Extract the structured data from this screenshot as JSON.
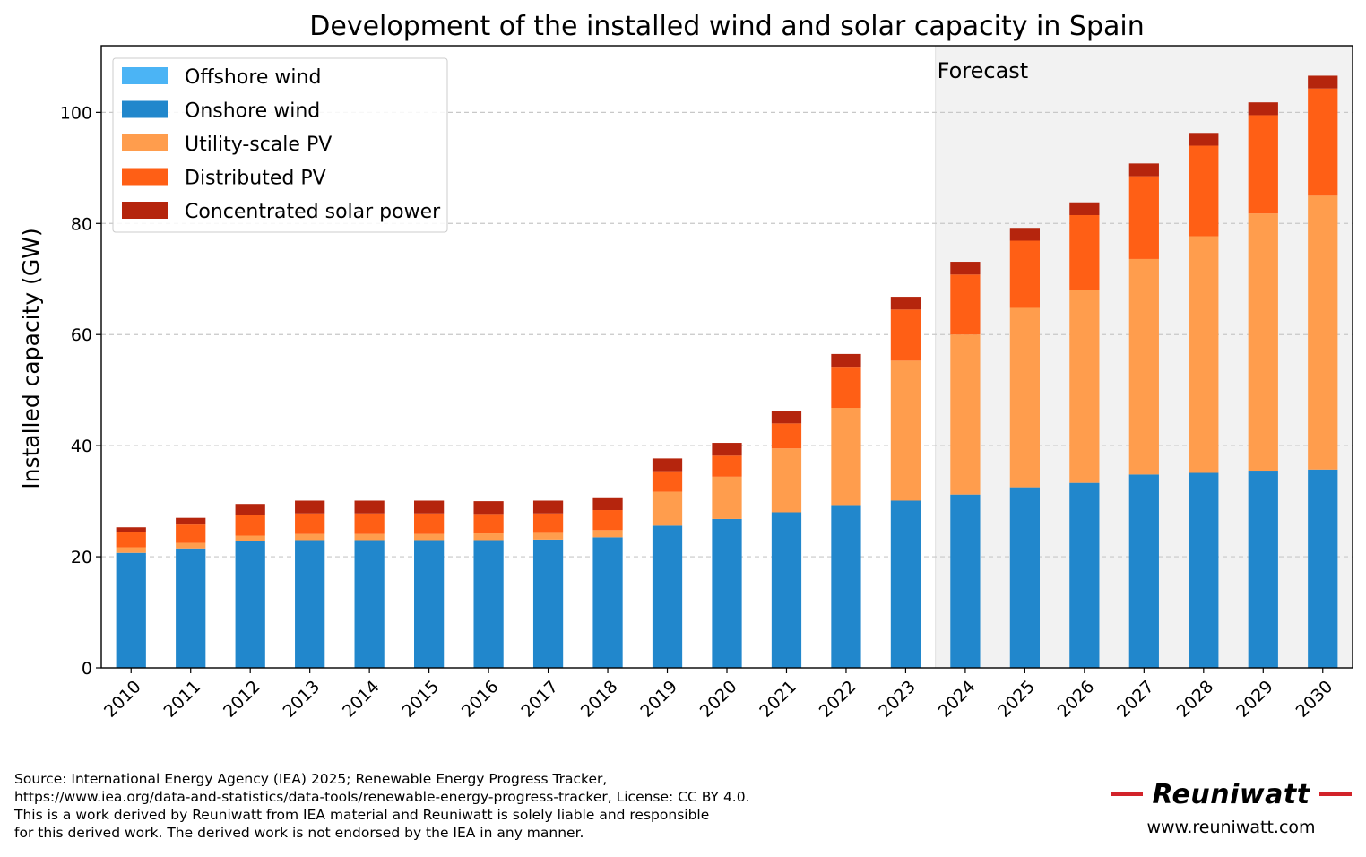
{
  "chart_data": {
    "type": "bar",
    "stacked": true,
    "title": "Development of the installed wind and solar capacity in Spain",
    "xlabel": "",
    "ylabel": "Installed capacity (GW)",
    "ylim": [
      0,
      112
    ],
    "yticks": [
      0,
      20,
      40,
      60,
      80,
      100
    ],
    "grid": "y dashed",
    "legend_position": "top-left",
    "categories": [
      "2010",
      "2011",
      "2012",
      "2013",
      "2014",
      "2015",
      "2016",
      "2017",
      "2018",
      "2019",
      "2020",
      "2021",
      "2022",
      "2023",
      "2024",
      "2025",
      "2026",
      "2027",
      "2028",
      "2029",
      "2030"
    ],
    "forecast_label": "Forecast",
    "forecast_start": "2024",
    "series": [
      {
        "name": "Offshore wind",
        "color": "#4bb4f5",
        "values": [
          0,
          0,
          0,
          0,
          0,
          0,
          0,
          0,
          0,
          0,
          0,
          0,
          0,
          0,
          0,
          0,
          0,
          0,
          0,
          0,
          0
        ]
      },
      {
        "name": "Onshore wind",
        "color": "#2187cc",
        "values": [
          20.7,
          21.5,
          22.8,
          23.0,
          23.0,
          23.0,
          23.0,
          23.1,
          23.5,
          25.6,
          26.8,
          28.0,
          29.3,
          30.1,
          31.2,
          32.5,
          33.3,
          34.8,
          35.1,
          35.5,
          35.7
        ]
      },
      {
        "name": "Utility-scale PV",
        "color": "#ff9d4d",
        "values": [
          1.0,
          1.0,
          1.0,
          1.1,
          1.1,
          1.1,
          1.2,
          1.2,
          1.3,
          6.1,
          7.6,
          11.5,
          17.5,
          25.2,
          28.8,
          32.3,
          34.7,
          38.8,
          42.6,
          46.3,
          49.3
        ]
      },
      {
        "name": "Distributed PV",
        "color": "#ff5f15",
        "values": [
          2.8,
          3.3,
          3.7,
          3.7,
          3.7,
          3.7,
          3.5,
          3.5,
          3.6,
          3.7,
          3.8,
          4.5,
          7.4,
          9.2,
          10.8,
          12.1,
          13.5,
          14.9,
          16.3,
          17.7,
          19.3
        ]
      },
      {
        "name": "Concentrated solar power",
        "color": "#b5250d",
        "values": [
          0.8,
          1.2,
          2.0,
          2.3,
          2.3,
          2.3,
          2.3,
          2.3,
          2.3,
          2.3,
          2.3,
          2.3,
          2.3,
          2.3,
          2.3,
          2.3,
          2.3,
          2.3,
          2.3,
          2.3,
          2.3
        ]
      }
    ]
  },
  "footer": {
    "source_lines": [
      "Source: International Energy Agency (IEA) 2025; Renewable Energy Progress Tracker,",
      "https://www.iea.org/data-and-statistics/data-tools/renewable-energy-progress-tracker, License: CC BY 4.0.",
      "This is a work derived by Reuniwatt from IEA material and Reuniwatt is solely liable and responsible",
      "for this derived work. The derived work is not endorsed by the IEA in any manner."
    ],
    "brand_name": "Reuniwatt",
    "brand_website": "www.reuniwatt.com",
    "brand_color": "#d2232a"
  }
}
